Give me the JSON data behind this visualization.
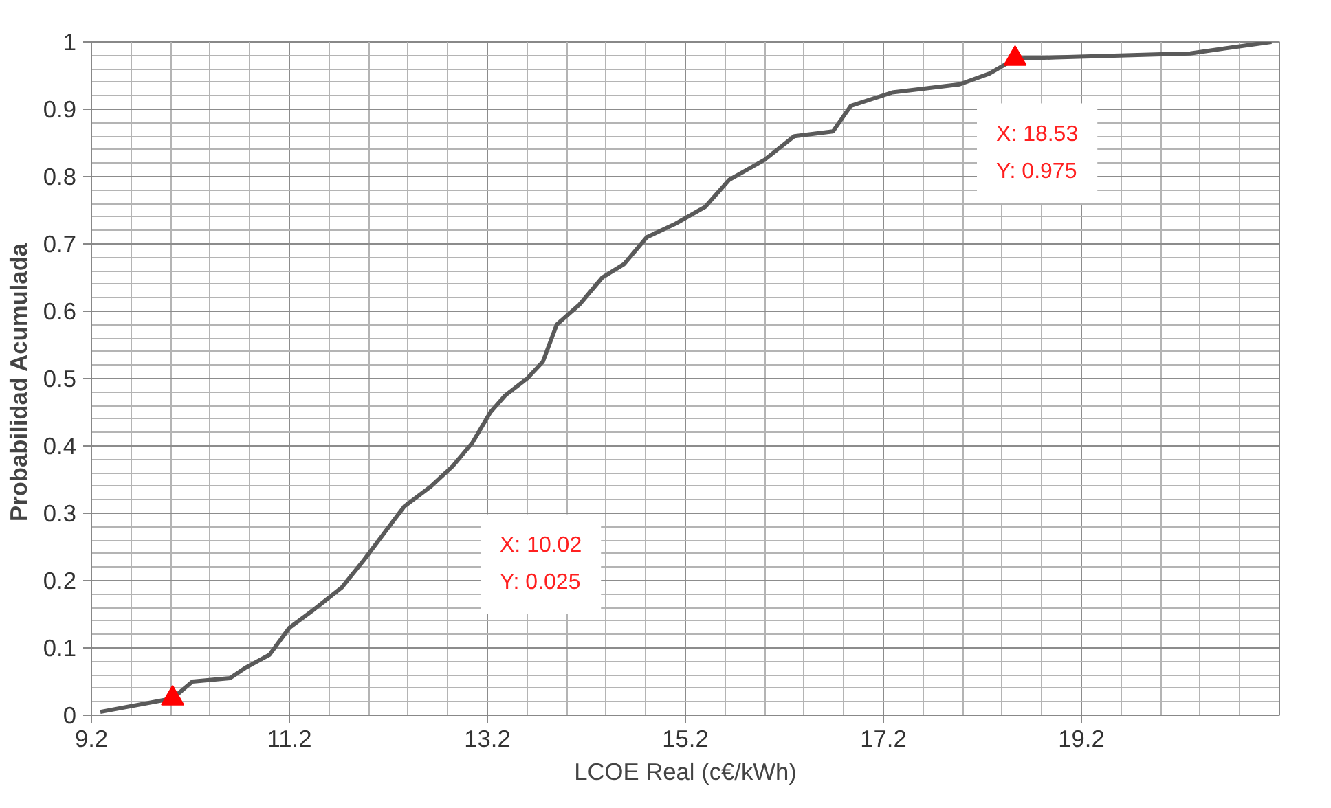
{
  "chart_data": {
    "type": "line",
    "xlabel": "LCOE Real (c€/kWh)",
    "ylabel": "Probabilidad  Acumulada",
    "xlim": [
      9.2,
      21.2
    ],
    "xticks": [
      9.2,
      11.2,
      13.2,
      15.2,
      17.2,
      19.2
    ],
    "ylim": [
      0,
      1
    ],
    "yticks": [
      0,
      0.1,
      0.2,
      0.3,
      0.4,
      0.5,
      0.6,
      0.7,
      0.8,
      0.9,
      1
    ],
    "grid": true,
    "series": [
      {
        "color": "#5a5a5a",
        "marker": "none",
        "x": [
          9.29,
          10.02,
          10.22,
          10.6,
          10.75,
          11.0,
          11.2,
          11.43,
          11.73,
          11.95,
          12.18,
          12.36,
          12.63,
          12.85,
          13.05,
          13.23,
          13.38,
          13.6,
          13.76,
          13.9,
          14.13,
          14.36,
          14.58,
          14.81,
          15.1,
          15.4,
          15.64,
          16.0,
          16.3,
          16.69,
          16.87,
          17.29,
          17.97,
          18.27,
          18.53,
          18.94,
          20.3,
          21.12
        ],
        "values": [
          0.005,
          0.025,
          0.05,
          0.055,
          0.07,
          0.09,
          0.13,
          0.155,
          0.19,
          0.23,
          0.275,
          0.31,
          0.34,
          0.37,
          0.405,
          0.45,
          0.475,
          0.5,
          0.525,
          0.58,
          0.61,
          0.65,
          0.67,
          0.71,
          0.73,
          0.755,
          0.795,
          0.825,
          0.86,
          0.867,
          0.905,
          0.925,
          0.937,
          0.953,
          0.975,
          0.977,
          0.983,
          1.0
        ]
      },
      {
        "type": "scatter",
        "color": "#ff0000",
        "marker": "triangle",
        "x": [
          10.02,
          18.53
        ],
        "values": [
          0.025,
          0.975
        ]
      }
    ],
    "annotations": [
      "X: 10.02\nY: 0.025",
      "X: 18.53\nY: 0.975"
    ]
  }
}
